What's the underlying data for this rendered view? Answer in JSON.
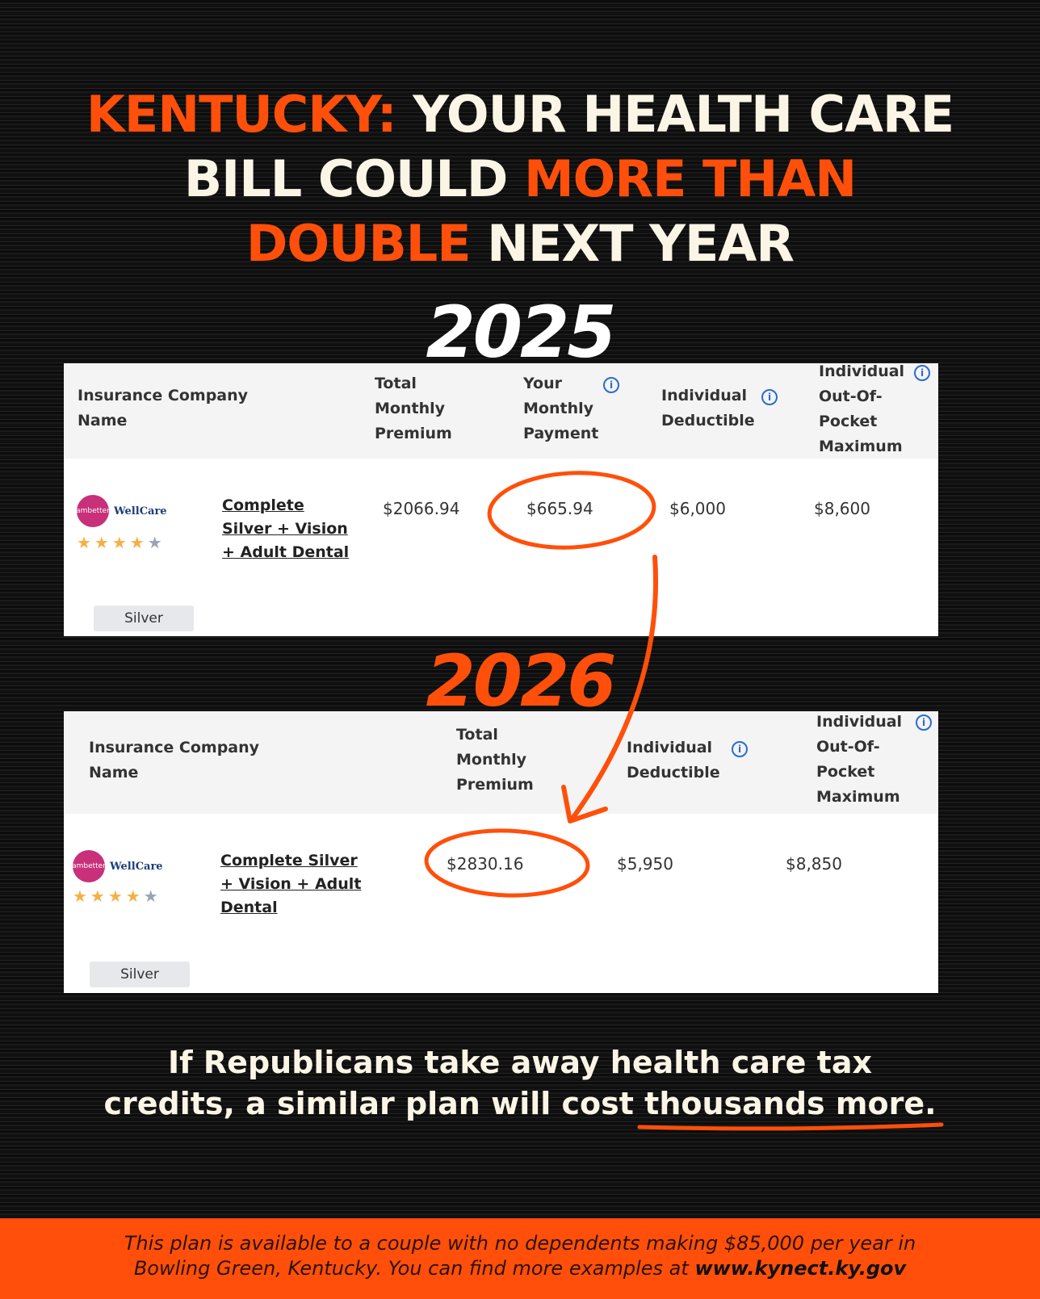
{
  "headline": {
    "state": "KENTUCKY:",
    "part1": "YOUR HEALTH CARE",
    "part2": "BILL COULD",
    "emph1": "MORE THAN",
    "emph2": "DOUBLE",
    "part3": "NEXT YEAR"
  },
  "colors": {
    "accent": "#ff4f0a",
    "text": "#fbf5e6",
    "background": "#111111"
  },
  "table_2025": {
    "year": "2025",
    "headers": {
      "company": "Insurance Company Name",
      "total": "Total Monthly Premium",
      "your": "Your Monthly Payment",
      "deductible": "Individual Deductible",
      "oop": "Individual Out-Of-Pocket Maximum"
    },
    "row": {
      "insurer_logo": "ambetter | WellCare of Kentucky",
      "logo_amb": "ambetter",
      "logo_wc": "WellCare",
      "plan": "Complete Silver + Vision + Adult Dental",
      "total": "$2066.94",
      "your": "$665.94",
      "deductible": "$6,000",
      "oop": "$8,600",
      "rating": 4,
      "rating_max": 5,
      "tier": "Silver"
    }
  },
  "table_2026": {
    "year": "2026",
    "headers": {
      "company": "Insurance Company Name",
      "total": "Total Monthly Premium",
      "deductible": "Individual Deductible",
      "oop": "Individual Out-Of-Pocket Maximum"
    },
    "row": {
      "insurer_logo": "ambetter | WellCare of Kentucky",
      "logo_amb": "ambetter",
      "logo_wc": "WellCare",
      "plan": "Complete Silver + Vision + Adult Dental",
      "total": "$2830.16",
      "deductible": "$5,950",
      "oop": "$8,850",
      "rating": 4,
      "rating_max": 5,
      "tier": "Silver"
    }
  },
  "message": {
    "line1": "If Republicans take away health care tax",
    "line2a": "credits, a similar plan will cost",
    "line2b": "thousands more."
  },
  "footer": {
    "text1": "This plan is available to a couple with no dependents making $85,000 per year in",
    "text2": "Bowling Green, Kentucky. You can find more examples at",
    "link": "www.kynect.ky.gov"
  }
}
